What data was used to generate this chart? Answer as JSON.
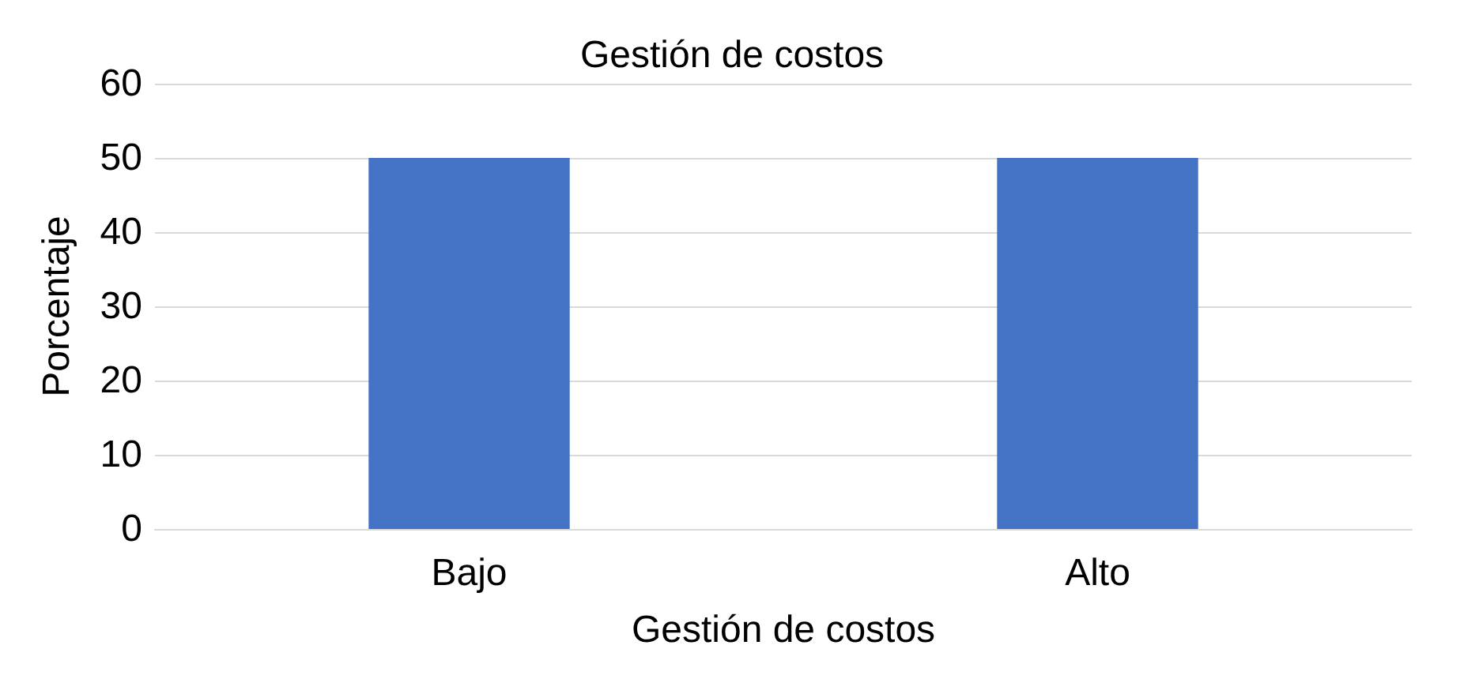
{
  "chart_data": {
    "type": "bar",
    "title": "Gestión de costos",
    "xlabel": "Gestión de costos",
    "ylabel": "Porcentaje",
    "categories": [
      "Bajo",
      "Alto"
    ],
    "series": [
      {
        "color": "#4472c4",
        "values": [
          50,
          50
        ]
      }
    ],
    "ylim": [
      0,
      60
    ],
    "yticks": [
      0,
      10,
      20,
      30,
      40,
      50,
      60
    ],
    "grid": "y"
  }
}
